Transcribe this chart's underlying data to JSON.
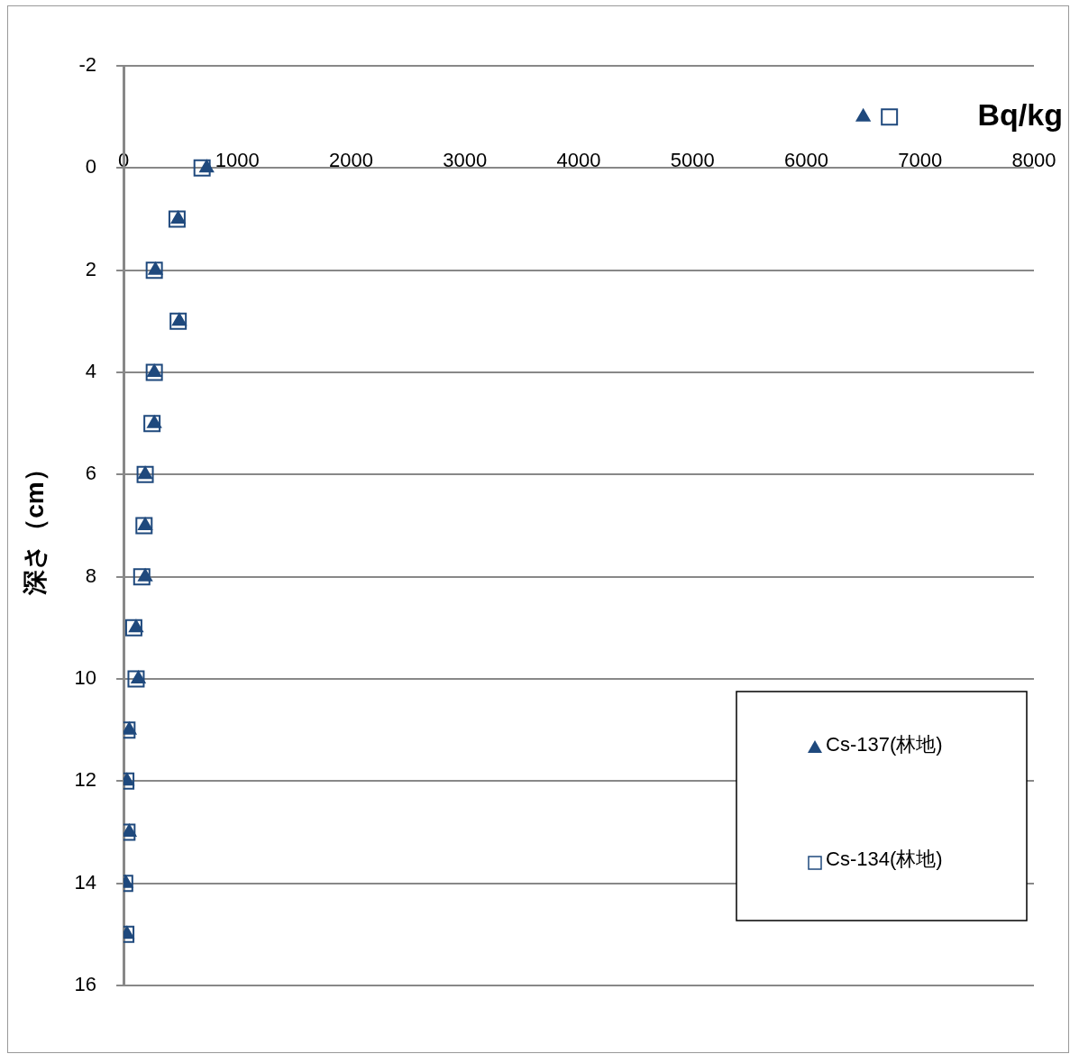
{
  "chart_data": {
    "type": "scatter",
    "xlabel": "Bq/kg",
    "ylabel": "深さ（cm）",
    "xlim": [
      0,
      8000
    ],
    "xticks": [
      0,
      1000,
      2000,
      3000,
      4000,
      5000,
      6000,
      7000,
      8000
    ],
    "ylim": [
      16,
      -2
    ],
    "yticks": [
      -2,
      0,
      2,
      4,
      6,
      8,
      10,
      12,
      14,
      16
    ],
    "grid": "y",
    "legend": "bottom right",
    "series": [
      {
        "name": "Cs-137(林地)",
        "color": "#1f497d",
        "marker": "triangle",
        "x": [
          6500,
          730,
          480,
          280,
          490,
          270,
          270,
          190,
          190,
          190,
          110,
          130,
          50,
          30,
          50,
          20,
          30
        ],
        "values": [
          -1,
          0,
          1,
          2,
          3,
          4,
          5,
          6,
          7,
          8,
          9,
          10,
          11,
          12,
          13,
          14,
          15
        ]
      },
      {
        "name": "Cs-134(林地)",
        "color": "#1f497d",
        "marker": "square",
        "x": [
          6730,
          690,
          470,
          270,
          480,
          270,
          250,
          190,
          180,
          160,
          90,
          110,
          30,
          20,
          30,
          10,
          20
        ],
        "values": [
          -1,
          0,
          1,
          2,
          3,
          4,
          5,
          6,
          7,
          8,
          9,
          10,
          11,
          12,
          13,
          14,
          15
        ]
      }
    ]
  }
}
